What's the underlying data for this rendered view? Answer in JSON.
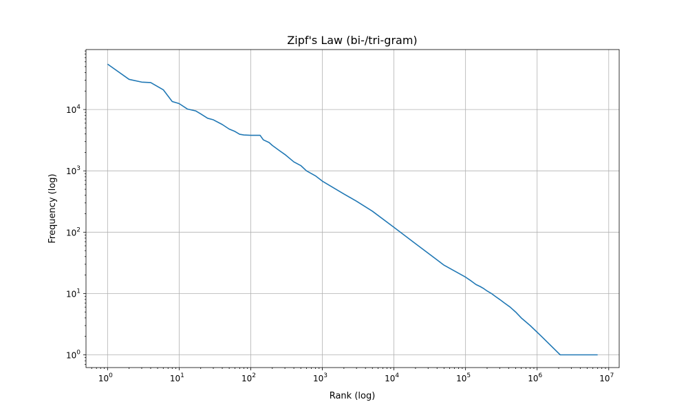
{
  "chart_data": {
    "type": "line",
    "title": "Zipf's Law (bi-/tri-gram)",
    "xlabel": "Rank (log)",
    "ylabel": "Frequency (log)",
    "xscale": "log",
    "yscale": "log",
    "xlim": [
      0.5,
      14000000
    ],
    "ylim": [
      0.62,
      95000
    ],
    "grid": true,
    "x_ticks": [
      {
        "value": 1,
        "base": "10",
        "exp": "0"
      },
      {
        "value": 10,
        "base": "10",
        "exp": "1"
      },
      {
        "value": 100,
        "base": "10",
        "exp": "2"
      },
      {
        "value": 1000,
        "base": "10",
        "exp": "3"
      },
      {
        "value": 10000,
        "base": "10",
        "exp": "4"
      },
      {
        "value": 100000,
        "base": "10",
        "exp": "5"
      },
      {
        "value": 1000000,
        "base": "10",
        "exp": "6"
      },
      {
        "value": 10000000,
        "base": "10",
        "exp": "7"
      }
    ],
    "y_ticks": [
      {
        "value": 1,
        "base": "10",
        "exp": "0"
      },
      {
        "value": 10,
        "base": "10",
        "exp": "1"
      },
      {
        "value": 100,
        "base": "10",
        "exp": "2"
      },
      {
        "value": 1000,
        "base": "10",
        "exp": "3"
      },
      {
        "value": 10000,
        "base": "10",
        "exp": "4"
      }
    ],
    "series": [
      {
        "name": "frequency",
        "color": "#1f77b4",
        "x": [
          1,
          2,
          3,
          4,
          6,
          8,
          10,
          13,
          17,
          20,
          25,
          30,
          40,
          50,
          60,
          70,
          80,
          100,
          135,
          150,
          180,
          200,
          250,
          300,
          400,
          500,
          600,
          800,
          1000,
          2000,
          3000,
          5000,
          10000,
          20000,
          50000,
          100000,
          120000,
          140000,
          160000,
          180000,
          200000,
          230000,
          260000,
          300000,
          350000,
          420000,
          500000,
          600000,
          800000,
          1150000,
          2100000,
          7000000
        ],
        "y": [
          55000,
          31000,
          28000,
          27500,
          21000,
          13500,
          12500,
          10200,
          9500,
          8500,
          7200,
          6800,
          5700,
          4800,
          4400,
          3950,
          3850,
          3800,
          3800,
          3200,
          2900,
          2600,
          2150,
          1850,
          1400,
          1220,
          1000,
          830,
          680,
          420,
          320,
          220,
          120,
          65,
          29,
          18.5,
          16,
          14,
          13,
          12,
          11,
          10,
          9,
          8,
          7,
          6,
          5,
          4,
          3,
          2,
          1,
          1
        ]
      }
    ]
  }
}
